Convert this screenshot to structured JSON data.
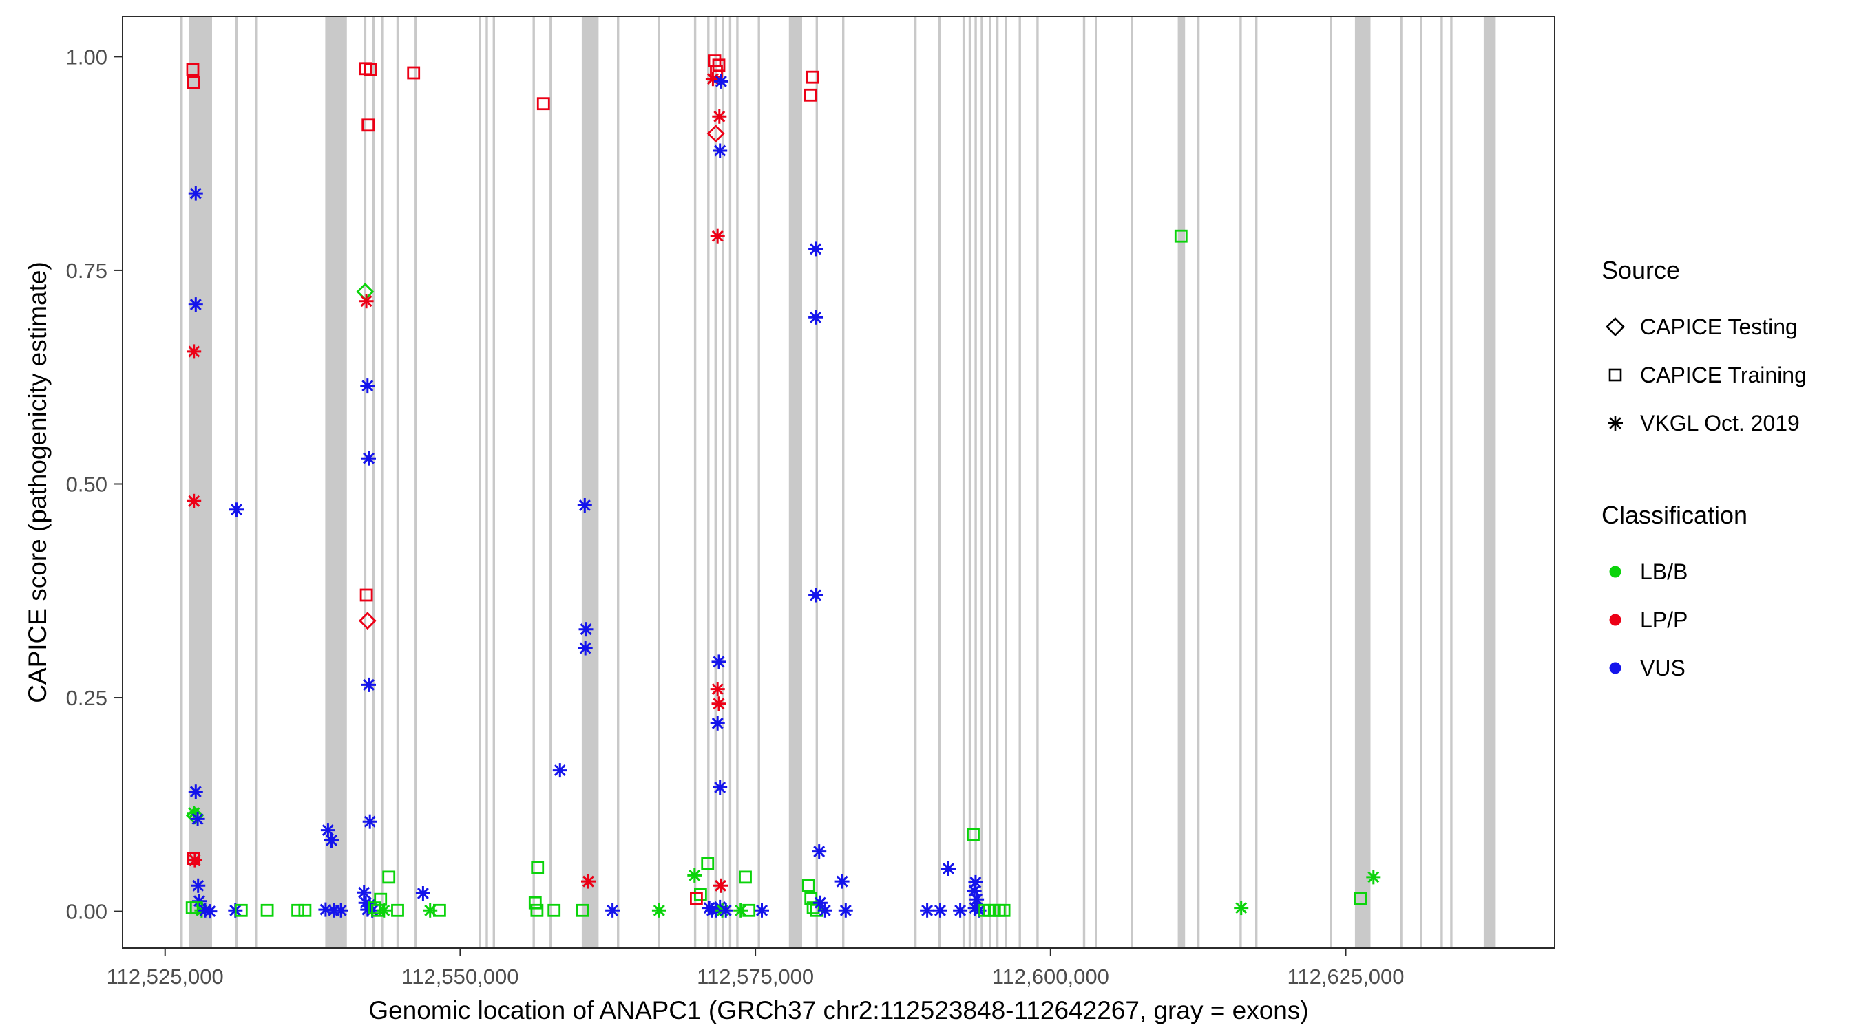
{
  "figure": {
    "background": "#ffffff"
  },
  "chart_data": {
    "type": "scatter",
    "title": "",
    "xlabel": "Genomic location of ANAPC1 (GRCh37 chr2:112523848-112642267, gray = exons)",
    "ylabel": "CAPICE score (pathogenicity estimate)",
    "xlim": [
      112521400,
      112642700
    ],
    "ylim": [
      -0.043,
      1.047
    ],
    "grid": false,
    "legend_position": "right",
    "x_ticks": [
      {
        "value": 112525000,
        "label": "112,525,000"
      },
      {
        "value": 112550000,
        "label": "112,550,000"
      },
      {
        "value": 112575000,
        "label": "112,575,000"
      },
      {
        "value": 112600000,
        "label": "112,600,000"
      },
      {
        "value": 112625000,
        "label": "112,625,000"
      }
    ],
    "y_ticks": [
      {
        "value": 0.0,
        "label": "0.00"
      },
      {
        "value": 0.25,
        "label": "0.25"
      },
      {
        "value": 0.5,
        "label": "0.50"
      },
      {
        "value": 0.75,
        "label": "0.75"
      },
      {
        "value": 1.0,
        "label": "1.00"
      }
    ],
    "exon_color": "#c9c9c9",
    "axis_color": "#2b2b2b",
    "tick_label_color": "#4d4d4d",
    "source_shapes": {
      "test": "diamond",
      "train": "square",
      "vkgl": "asterisk"
    },
    "source_labels": {
      "test": "CAPICE Testing",
      "train": "CAPICE Training",
      "vkgl": "VKGL Oct. 2019"
    },
    "class_colors": {
      "LB/B": "#0bd30b",
      "LP/P": "#ec0016",
      "VUS": "#1414eb"
    },
    "exons": [
      [
        112526250,
        112526500
      ],
      [
        112527040,
        112528980
      ],
      [
        112530950,
        112531150
      ],
      [
        112532600,
        112532800
      ],
      [
        112538570,
        112540400
      ],
      [
        112541850,
        112542050
      ],
      [
        112542550,
        112542750
      ],
      [
        112543280,
        112543480
      ],
      [
        112544600,
        112544800
      ],
      [
        112546130,
        112546330
      ],
      [
        112551550,
        112551750
      ],
      [
        112552150,
        112552350
      ],
      [
        112552750,
        112552950
      ],
      [
        112556130,
        112556330
      ],
      [
        112557560,
        112557760
      ],
      [
        112560290,
        112561720
      ],
      [
        112563270,
        112563470
      ],
      [
        112566740,
        112566940
      ],
      [
        112569800,
        112570000
      ],
      [
        112570920,
        112571120
      ],
      [
        112571530,
        112571730
      ],
      [
        112572140,
        112572340
      ],
      [
        112572760,
        112572960
      ],
      [
        112573370,
        112573570
      ],
      [
        112575200,
        112575400
      ],
      [
        112577840,
        112578960
      ],
      [
        112580100,
        112580300
      ],
      [
        112582340,
        112582540
      ],
      [
        112588460,
        112588660
      ],
      [
        112590500,
        112590700
      ],
      [
        112592540,
        112592740
      ],
      [
        112593060,
        112593260
      ],
      [
        112593560,
        112593760
      ],
      [
        112594080,
        112594280
      ],
      [
        112594790,
        112594990
      ],
      [
        112595400,
        112595600
      ],
      [
        112596110,
        112596310
      ],
      [
        112597300,
        112597500
      ],
      [
        112598800,
        112599000
      ],
      [
        112602740,
        112602940
      ],
      [
        112603760,
        112603960
      ],
      [
        112606800,
        112607000
      ],
      [
        112610780,
        112611400
      ],
      [
        112612430,
        112612630
      ],
      [
        112616000,
        112616200
      ],
      [
        112617330,
        112617530
      ],
      [
        112623650,
        112623850
      ],
      [
        112625780,
        112627100
      ],
      [
        112629600,
        112629800
      ],
      [
        112631300,
        112631500
      ],
      [
        112633030,
        112633230
      ],
      [
        112633850,
        112634050
      ],
      [
        112636690,
        112637710
      ]
    ],
    "points_format": [
      "genomic_position",
      "capice_score",
      "source",
      "classification"
    ],
    "points": [
      [
        112527350,
        0.985,
        "train",
        "LP/P"
      ],
      [
        112527420,
        0.97,
        "train",
        "LP/P"
      ],
      [
        112527600,
        0.84,
        "vkgl",
        "VUS"
      ],
      [
        112527600,
        0.71,
        "vkgl",
        "VUS"
      ],
      [
        112527450,
        0.655,
        "vkgl",
        "LP/P"
      ],
      [
        112527450,
        0.48,
        "vkgl",
        "LP/P"
      ],
      [
        112531050,
        0.47,
        "vkgl",
        "VUS"
      ],
      [
        112527600,
        0.14,
        "vkgl",
        "VUS"
      ],
      [
        112527450,
        0.115,
        "vkgl",
        "LB/B"
      ],
      [
        112527520,
        0.112,
        "test",
        "LB/B"
      ],
      [
        112527760,
        0.108,
        "vkgl",
        "VUS"
      ],
      [
        112527420,
        0.062,
        "train",
        "LP/P"
      ],
      [
        112527520,
        0.06,
        "vkgl",
        "LP/P"
      ],
      [
        112527800,
        0.03,
        "vkgl",
        "VUS"
      ],
      [
        112527900,
        0.012,
        "vkgl",
        "VUS"
      ],
      [
        112527300,
        0.004,
        "train",
        "LB/B"
      ],
      [
        112527660,
        0.004,
        "train",
        "LB/B"
      ],
      [
        112528100,
        0.001,
        "vkgl",
        "LB/B"
      ],
      [
        112528400,
        0.001,
        "vkgl",
        "VUS"
      ],
      [
        112528800,
        0.0,
        "vkgl",
        "VUS"
      ],
      [
        112530950,
        0.001,
        "vkgl",
        "VUS"
      ],
      [
        112531450,
        0.001,
        "train",
        "LB/B"
      ],
      [
        112533650,
        0.001,
        "train",
        "LB/B"
      ],
      [
        112536250,
        0.001,
        "train",
        "LB/B"
      ],
      [
        112536850,
        0.001,
        "train",
        "LB/B"
      ],
      [
        112538800,
        0.095,
        "vkgl",
        "VUS"
      ],
      [
        112539100,
        0.083,
        "vkgl",
        "VUS"
      ],
      [
        112538600,
        0.002,
        "vkgl",
        "VUS"
      ],
      [
        112539300,
        0.001,
        "vkgl",
        "VUS"
      ],
      [
        112539900,
        0.001,
        "vkgl",
        "VUS"
      ],
      [
        112542000,
        0.986,
        "train",
        "LP/P"
      ],
      [
        112542400,
        0.985,
        "train",
        "LP/P"
      ],
      [
        112546050,
        0.981,
        "train",
        "LP/P"
      ],
      [
        112542200,
        0.92,
        "train",
        "LP/P"
      ],
      [
        112541950,
        0.725,
        "test",
        "LB/B"
      ],
      [
        112542050,
        0.714,
        "vkgl",
        "LP/P"
      ],
      [
        112542150,
        0.615,
        "vkgl",
        "VUS"
      ],
      [
        112542250,
        0.53,
        "vkgl",
        "VUS"
      ],
      [
        112542050,
        0.37,
        "train",
        "LP/P"
      ],
      [
        112542150,
        0.34,
        "test",
        "LP/P"
      ],
      [
        112542250,
        0.265,
        "vkgl",
        "VUS"
      ],
      [
        112542350,
        0.105,
        "vkgl",
        "VUS"
      ],
      [
        112543950,
        0.04,
        "train",
        "LB/B"
      ],
      [
        112541850,
        0.022,
        "vkgl",
        "VUS"
      ],
      [
        112542000,
        0.01,
        "vkgl",
        "VUS"
      ],
      [
        112542150,
        0.002,
        "vkgl",
        "VUS"
      ],
      [
        112542350,
        0.008,
        "vkgl",
        "VUS"
      ],
      [
        112542550,
        0.001,
        "vkgl",
        "VUS"
      ],
      [
        112542750,
        0.004,
        "train",
        "LB/B"
      ],
      [
        112543000,
        0.001,
        "train",
        "LB/B"
      ],
      [
        112543250,
        0.014,
        "train",
        "LB/B"
      ],
      [
        112543550,
        0.001,
        "vkgl",
        "LB/B"
      ],
      [
        112544700,
        0.001,
        "train",
        "LB/B"
      ],
      [
        112546850,
        0.021,
        "vkgl",
        "VUS"
      ],
      [
        112547450,
        0.001,
        "vkgl",
        "LB/B"
      ],
      [
        112548250,
        0.001,
        "train",
        "LB/B"
      ],
      [
        112557050,
        0.945,
        "train",
        "LP/P"
      ],
      [
        112556550,
        0.051,
        "train",
        "LB/B"
      ],
      [
        112556350,
        0.01,
        "train",
        "LB/B"
      ],
      [
        112556500,
        0.001,
        "train",
        "LB/B"
      ],
      [
        112557950,
        0.001,
        "train",
        "LB/B"
      ],
      [
        112558450,
        0.165,
        "vkgl",
        "VUS"
      ],
      [
        112560550,
        0.475,
        "vkgl",
        "VUS"
      ],
      [
        112560650,
        0.33,
        "vkgl",
        "VUS"
      ],
      [
        112560600,
        0.308,
        "vkgl",
        "VUS"
      ],
      [
        112560850,
        0.035,
        "vkgl",
        "LP/P"
      ],
      [
        112560350,
        0.001,
        "train",
        "LB/B"
      ],
      [
        112562900,
        0.001,
        "vkgl",
        "VUS"
      ],
      [
        112566850,
        0.001,
        "vkgl",
        "LB/B"
      ],
      [
        112571550,
        0.995,
        "train",
        "LP/P"
      ],
      [
        112571900,
        0.99,
        "train",
        "LP/P"
      ],
      [
        112571700,
        0.983,
        "train",
        "LP/P"
      ],
      [
        112571400,
        0.974,
        "vkgl",
        "LP/P"
      ],
      [
        112572100,
        0.971,
        "vkgl",
        "VUS"
      ],
      [
        112571950,
        0.93,
        "vkgl",
        "LP/P"
      ],
      [
        112571650,
        0.91,
        "test",
        "LP/P"
      ],
      [
        112572000,
        0.89,
        "vkgl",
        "VUS"
      ],
      [
        112571800,
        0.79,
        "vkgl",
        "LP/P"
      ],
      [
        112571900,
        0.292,
        "vkgl",
        "VUS"
      ],
      [
        112571800,
        0.26,
        "vkgl",
        "LP/P"
      ],
      [
        112571900,
        0.243,
        "vkgl",
        "LP/P"
      ],
      [
        112571800,
        0.22,
        "vkgl",
        "VUS"
      ],
      [
        112572000,
        0.145,
        "vkgl",
        "VUS"
      ],
      [
        112569850,
        0.042,
        "vkgl",
        "LB/B"
      ],
      [
        112570950,
        0.056,
        "train",
        "LB/B"
      ],
      [
        112570350,
        0.02,
        "train",
        "LB/B"
      ],
      [
        112570000,
        0.015,
        "train",
        "LP/P"
      ],
      [
        112572050,
        0.03,
        "vkgl",
        "LP/P"
      ],
      [
        112571100,
        0.004,
        "vkgl",
        "VUS"
      ],
      [
        112571350,
        0.001,
        "vkgl",
        "VUS"
      ],
      [
        112571700,
        0.001,
        "vkgl",
        "VUS"
      ],
      [
        112572000,
        0.005,
        "vkgl",
        "VUS"
      ],
      [
        112572200,
        0.001,
        "vkgl",
        "LB/B"
      ],
      [
        112572500,
        0.001,
        "vkgl",
        "VUS"
      ],
      [
        112573750,
        0.001,
        "vkgl",
        "LB/B"
      ],
      [
        112574150,
        0.04,
        "train",
        "LB/B"
      ],
      [
        112574450,
        0.001,
        "train",
        "LB/B"
      ],
      [
        112575550,
        0.001,
        "vkgl",
        "VUS"
      ],
      [
        112579850,
        0.976,
        "train",
        "LP/P"
      ],
      [
        112579650,
        0.955,
        "train",
        "LP/P"
      ],
      [
        112580100,
        0.775,
        "vkgl",
        "VUS"
      ],
      [
        112580100,
        0.695,
        "vkgl",
        "VUS"
      ],
      [
        112580100,
        0.37,
        "vkgl",
        "VUS"
      ],
      [
        112580400,
        0.07,
        "vkgl",
        "VUS"
      ],
      [
        112579500,
        0.03,
        "train",
        "LB/B"
      ],
      [
        112579700,
        0.015,
        "train",
        "LB/B"
      ],
      [
        112579900,
        0.004,
        "train",
        "LB/B"
      ],
      [
        112580200,
        0.001,
        "train",
        "LB/B"
      ],
      [
        112580500,
        0.01,
        "vkgl",
        "VUS"
      ],
      [
        112580900,
        0.001,
        "vkgl",
        "VUS"
      ],
      [
        112582350,
        0.035,
        "vkgl",
        "VUS"
      ],
      [
        112582650,
        0.001,
        "vkgl",
        "VUS"
      ],
      [
        112589550,
        0.001,
        "vkgl",
        "VUS"
      ],
      [
        112591350,
        0.05,
        "vkgl",
        "VUS"
      ],
      [
        112590650,
        0.001,
        "vkgl",
        "VUS"
      ],
      [
        112592350,
        0.001,
        "vkgl",
        "VUS"
      ],
      [
        112593450,
        0.09,
        "train",
        "LB/B"
      ],
      [
        112593650,
        0.034,
        "vkgl",
        "VUS"
      ],
      [
        112593550,
        0.024,
        "vkgl",
        "VUS"
      ],
      [
        112593750,
        0.014,
        "vkgl",
        "VUS"
      ],
      [
        112593600,
        0.004,
        "vkgl",
        "VUS"
      ],
      [
        112593950,
        0.001,
        "vkgl",
        "VUS"
      ],
      [
        112594450,
        0.001,
        "train",
        "LB/B"
      ],
      [
        112594850,
        0.001,
        "train",
        "LB/B"
      ],
      [
        112595250,
        0.001,
        "train",
        "LB/B"
      ],
      [
        112595650,
        0.001,
        "train",
        "LB/B"
      ],
      [
        112596050,
        0.001,
        "train",
        "LB/B"
      ],
      [
        112611050,
        0.79,
        "train",
        "LB/B"
      ],
      [
        112616150,
        0.004,
        "vkgl",
        "LB/B"
      ],
      [
        112626250,
        0.015,
        "train",
        "LB/B"
      ],
      [
        112627350,
        0.04,
        "vkgl",
        "LB/B"
      ]
    ]
  },
  "legend": {
    "source": {
      "title": "Source",
      "items": [
        {
          "label": "CAPICE Testing",
          "shape": "diamond"
        },
        {
          "label": "CAPICE Training",
          "shape": "square"
        },
        {
          "label": "VKGL Oct. 2019",
          "shape": "asterisk"
        }
      ]
    },
    "classification": {
      "title": "Classification",
      "items": [
        {
          "label": "LB/B",
          "color": "#0bd30b"
        },
        {
          "label": "LP/P",
          "color": "#ec0016"
        },
        {
          "label": "VUS",
          "color": "#1414eb"
        }
      ]
    }
  }
}
